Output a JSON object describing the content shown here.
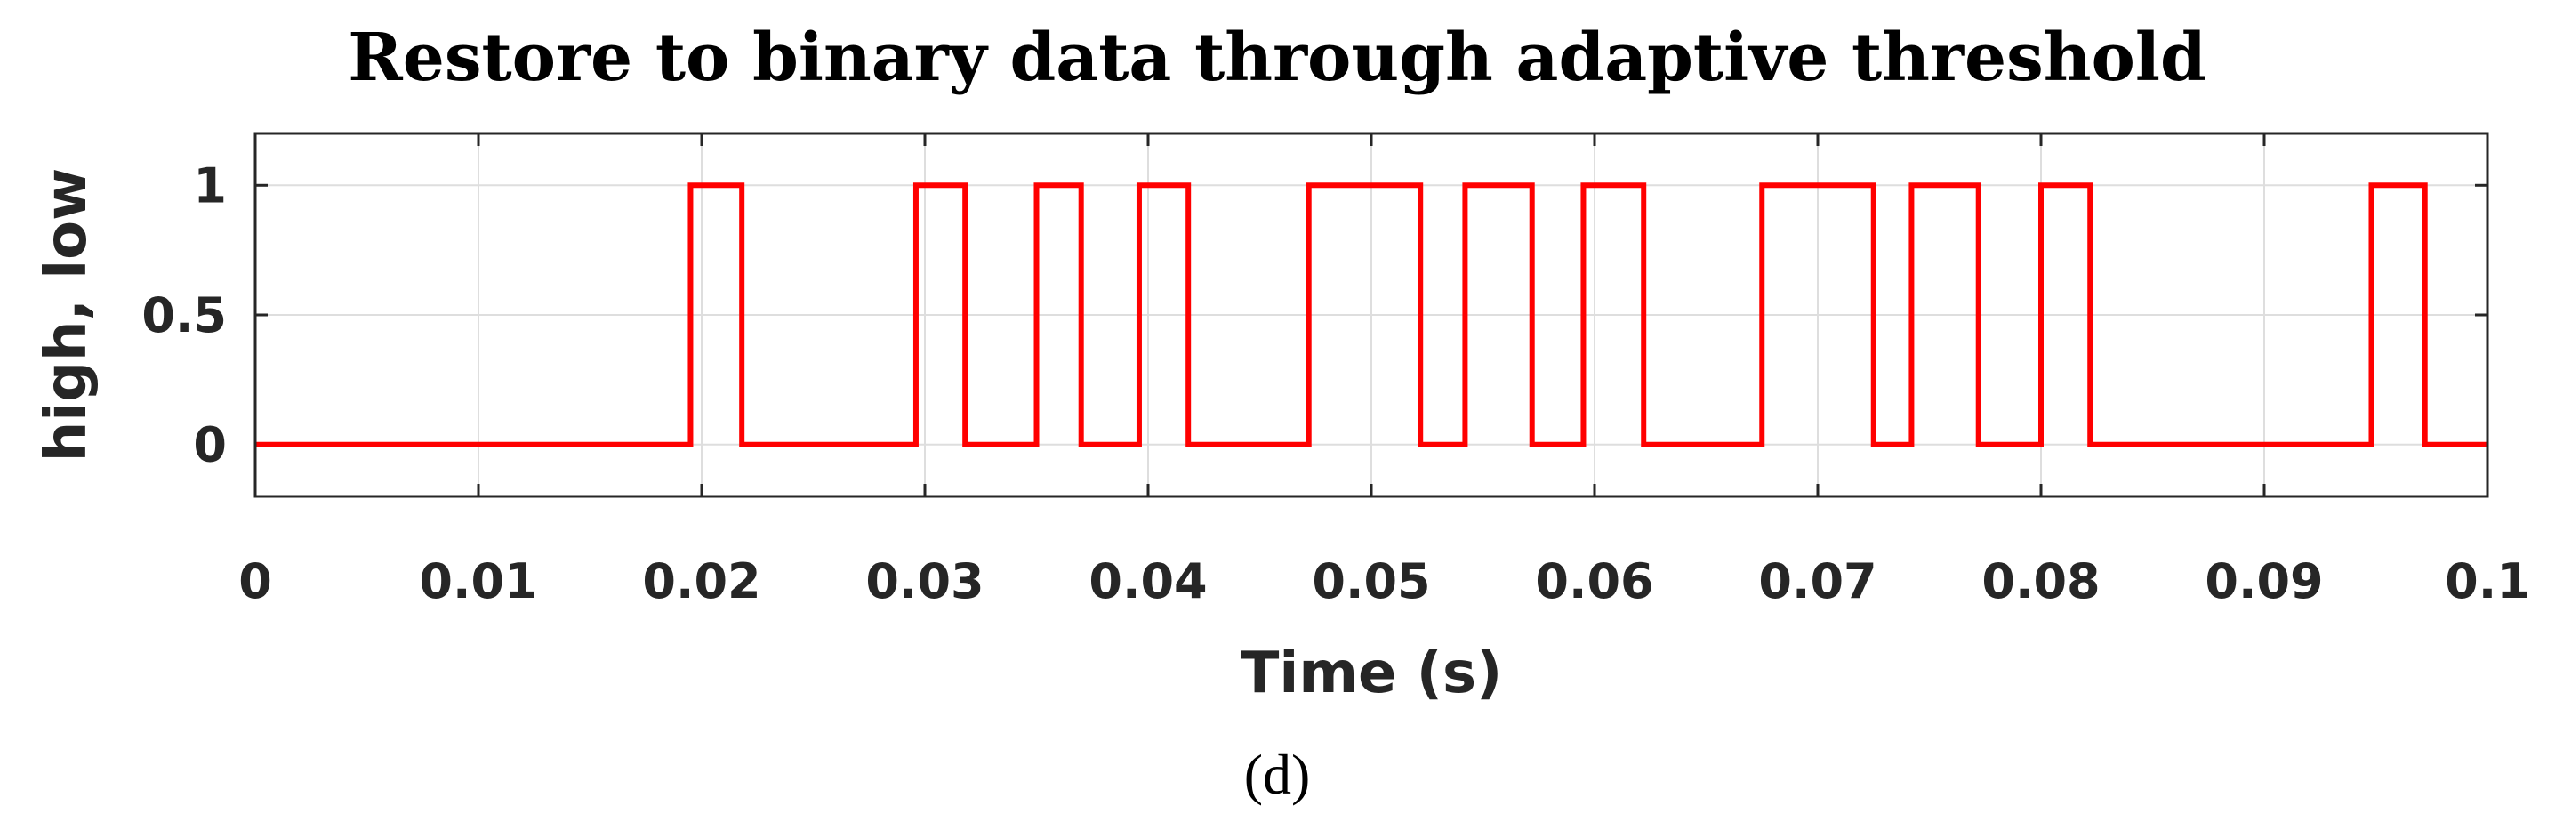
{
  "chart_data": {
    "type": "line",
    "title": "Restore to binary data through adaptive threshold",
    "caption": "(d)",
    "xlabel": "Time (s)",
    "ylabel": "high, low",
    "xlim": [
      0,
      0.1
    ],
    "ylim": [
      -0.2,
      1.2
    ],
    "xticks": [
      0,
      0.01,
      0.02,
      0.03,
      0.04,
      0.05,
      0.06,
      0.07,
      0.08,
      0.09,
      0.1
    ],
    "xtick_labels": [
      "0",
      "0.01",
      "0.02",
      "0.03",
      "0.04",
      "0.05",
      "0.06",
      "0.07",
      "0.08",
      "0.09",
      "0.1"
    ],
    "yticks": [
      0,
      0.5,
      1
    ],
    "ytick_labels": [
      "0",
      "0.5",
      "1"
    ],
    "grid": true,
    "series": [
      {
        "color": "#ff0000",
        "step": true,
        "x": [
          0,
          0.0195,
          0.0218,
          0.0296,
          0.0318,
          0.035,
          0.037,
          0.0396,
          0.0418,
          0.0472,
          0.0522,
          0.0542,
          0.0572,
          0.0595,
          0.0622,
          0.0675,
          0.0725,
          0.0742,
          0.0772,
          0.08,
          0.0822,
          0.0948,
          0.0972,
          0.1
        ],
        "y": [
          0,
          1,
          0,
          1,
          0,
          1,
          0,
          1,
          0,
          1,
          0,
          1,
          0,
          1,
          0,
          1,
          0,
          1,
          0,
          1,
          0,
          1,
          0,
          0
        ]
      }
    ]
  }
}
